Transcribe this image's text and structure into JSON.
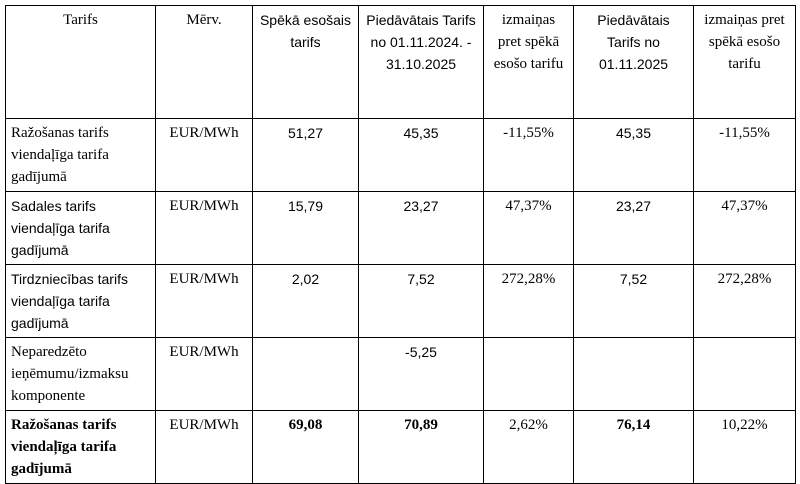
{
  "table": {
    "header": [
      "Tarifs",
      "Mērv.",
      "Spēkā esošais tarifs",
      "Piedāvātais Tarifs no 01.11.2024. - 31.10.2025",
      "izmaiņas pret spēkā esošo tarifu",
      "Piedāvātais Tarifs no 01.11.2025",
      "izmaiņas pret spēkā esošo tarifu"
    ],
    "rows": [
      [
        "Ražošanas tarifs viendaļīga tarifa gadījumā",
        "EUR/MWh",
        "51,27",
        "45,35",
        "-11,55%",
        "45,35",
        "-11,55%"
      ],
      [
        "Sadales tarifs viendaļīga tarifa gadījumā",
        "EUR/MWh",
        "15,79",
        "23,27",
        "47,37%",
        "23,27",
        "47,37%"
      ],
      [
        "Tirdzniecības tarifs viendaļīga tarifa gadījumā",
        "EUR/MWh",
        "2,02",
        "7,52",
        "272,28%",
        "7,52",
        "272,28%"
      ],
      [
        "Neparedzēto ieņēmumu/izmaksu komponente",
        "EUR/MWh",
        null,
        "-5,25",
        null,
        null,
        null
      ],
      [
        "Ražošanas tarifs viendaļīga tarifa gadījumā",
        "EUR/MWh",
        "69,08",
        "70,89",
        "2,62%",
        "76,14",
        "10,22%"
      ]
    ]
  }
}
